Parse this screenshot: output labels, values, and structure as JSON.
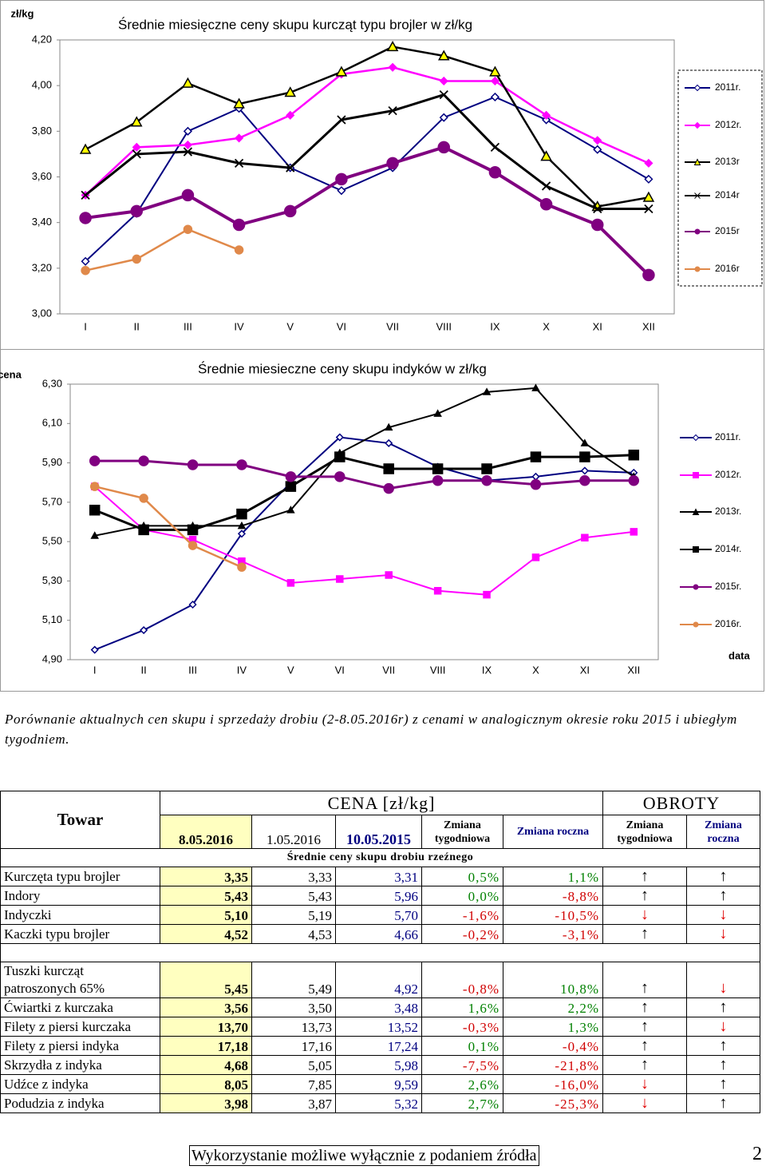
{
  "chart_data": [
    {
      "type": "line",
      "title": "Średnie miesięczne ceny skupu kurcząt typu brojler w zł/kg",
      "ylabel": "zł/kg",
      "categories": [
        "I",
        "II",
        "III",
        "IV",
        "V",
        "VI",
        "VII",
        "VIII",
        "IX",
        "X",
        "XI",
        "XII"
      ],
      "ylim": [
        3.0,
        4.2
      ],
      "yticks": [
        {
          "value": 3.0,
          "label": "3,00"
        },
        {
          "value": 3.2,
          "label": "3,20"
        },
        {
          "value": 3.4,
          "label": "3,40"
        },
        {
          "value": 3.6,
          "label": "3,60"
        },
        {
          "value": 3.8,
          "label": "3,80"
        },
        {
          "value": 4.0,
          "label": "4,00"
        },
        {
          "value": 4.2,
          "label": "4,20"
        }
      ],
      "legend": "right",
      "series": [
        {
          "name": "2011r.",
          "color": "#000080",
          "marker": "diamond",
          "marker_color": "#ffffff",
          "values": [
            3.23,
            3.44,
            3.8,
            3.9,
            3.64,
            3.54,
            3.64,
            3.86,
            3.95,
            3.85,
            3.72,
            3.59
          ]
        },
        {
          "name": "2012r.",
          "color": "#ff00ff",
          "marker": "diamond",
          "marker_color": "#ff00ff",
          "values": [
            3.52,
            3.73,
            3.74,
            3.77,
            3.87,
            4.05,
            4.08,
            4.02,
            4.02,
            3.87,
            3.76,
            3.66
          ]
        },
        {
          "name": "2013r",
          "color": "#000000",
          "marker": "triangle",
          "marker_color": "#ffff00",
          "values": [
            3.72,
            3.84,
            4.01,
            3.92,
            3.97,
            4.06,
            4.17,
            4.13,
            4.06,
            3.69,
            3.47,
            3.51
          ]
        },
        {
          "name": "2014r",
          "color": "#000000",
          "marker": "x",
          "marker_color": "#000000",
          "values": [
            3.52,
            3.7,
            3.71,
            3.66,
            3.64,
            3.85,
            3.89,
            3.96,
            3.73,
            3.56,
            3.46,
            3.46
          ]
        },
        {
          "name": "2015r",
          "color": "#800080",
          "marker": "circle",
          "marker_color": "#800080",
          "values": [
            3.42,
            3.45,
            3.52,
            3.39,
            3.45,
            3.59,
            3.66,
            3.73,
            3.62,
            3.48,
            3.39,
            3.17
          ]
        },
        {
          "name": "2016r",
          "color": "#e0894a",
          "marker": "circle",
          "marker_color": "#e0894a",
          "values": [
            3.19,
            3.24,
            3.37,
            3.28,
            null,
            null,
            null,
            null,
            null,
            null,
            null,
            null
          ]
        }
      ]
    },
    {
      "type": "line",
      "title": "Średnie miesieczne ceny skupu indyków w zł/kg",
      "ylabel": "cena",
      "xlabel": "data",
      "categories": [
        "I",
        "II",
        "III",
        "IV",
        "V",
        "VI",
        "VII",
        "VIII",
        "IX",
        "X",
        "XI",
        "XII"
      ],
      "ylim": [
        4.9,
        6.3
      ],
      "yticks": [
        {
          "value": 4.9,
          "label": "4,90"
        },
        {
          "value": 5.1,
          "label": "5,10"
        },
        {
          "value": 5.3,
          "label": "5,30"
        },
        {
          "value": 5.5,
          "label": "5,50"
        },
        {
          "value": 5.7,
          "label": "5,70"
        },
        {
          "value": 5.9,
          "label": "5,90"
        },
        {
          "value": 6.1,
          "label": "6,10"
        },
        {
          "value": 6.3,
          "label": "6,30"
        }
      ],
      "legend": "right",
      "series": [
        {
          "name": "2011r.",
          "color": "#000080",
          "marker": "diamond",
          "marker_color": "#ffffff",
          "values": [
            4.95,
            5.05,
            5.18,
            5.54,
            5.8,
            6.03,
            6.0,
            5.88,
            5.81,
            5.83,
            5.86,
            5.85
          ]
        },
        {
          "name": "2012r.",
          "color": "#ff00ff",
          "marker": "square",
          "marker_color": "#ff00ff",
          "values": [
            5.78,
            5.56,
            5.51,
            5.4,
            5.29,
            5.31,
            5.33,
            5.25,
            5.23,
            5.42,
            5.52,
            5.55
          ]
        },
        {
          "name": "2013r.",
          "color": "#000000",
          "marker": "triangle",
          "marker_color": "#000000",
          "values": [
            5.53,
            5.58,
            5.58,
            5.58,
            5.66,
            5.95,
            6.08,
            6.15,
            6.26,
            6.28,
            6.0,
            5.83
          ]
        },
        {
          "name": "2014r.",
          "color": "#000000",
          "marker": "square",
          "marker_color": "#000000",
          "values": [
            5.66,
            5.56,
            5.56,
            5.64,
            5.78,
            5.93,
            5.87,
            5.87,
            5.87,
            5.93,
            5.93,
            5.94
          ]
        },
        {
          "name": "2015r.",
          "color": "#800080",
          "marker": "circle",
          "marker_color": "#800080",
          "values": [
            5.91,
            5.91,
            5.89,
            5.89,
            5.83,
            5.83,
            5.77,
            5.81,
            5.81,
            5.79,
            5.81,
            5.81
          ]
        },
        {
          "name": "2016r.",
          "color": "#e0894a",
          "marker": "circle",
          "marker_color": "#e0894a",
          "values": [
            5.78,
            5.72,
            5.48,
            5.37,
            null,
            null,
            null,
            null,
            null,
            null,
            null,
            null
          ]
        }
      ]
    }
  ],
  "caption": "Porównanie aktualnych cen skupu i sprzedaży drobiu (2-8.05.2016r) z cenami w analogicznym okresie roku 2015 i ubiegłym tygodniem.",
  "table": {
    "group_headers": [
      "Towar",
      "CENA [zł/kg]",
      "OBROTY"
    ],
    "columns": [
      "8.05.2016",
      "1.05.2016",
      "10.05.2015",
      "Zmiana tygodniowa",
      "Zmiana roczna",
      "Zmiana tygodniowa",
      "Zmiana roczna"
    ],
    "section": "Średnie ceny skupu drobiu rzeźnego",
    "groups": [
      [
        [
          "Kurczęta typu brojler",
          "3,35",
          "3,33",
          "3,31",
          "0,5%",
          "1,1%",
          "↑",
          "↑"
        ],
        [
          "Indory",
          "5,43",
          "5,43",
          "5,96",
          "0,0%",
          "-8,8%",
          "↑",
          "↑"
        ],
        [
          "Indyczki",
          "5,10",
          "5,19",
          "5,70",
          "-1,6%",
          "-10,5%",
          "↓",
          "↓"
        ],
        [
          "Kaczki typu brojler",
          "4,52",
          "4,53",
          "4,66",
          "-0,2%",
          "-3,1%",
          "↑",
          "↓"
        ]
      ],
      [
        [
          "Tuszki kurcząt patroszonych 65%",
          "5,45",
          "5,49",
          "4,92",
          "-0,8%",
          "10,8%",
          "↑",
          "↓"
        ],
        [
          "Ćwiartki z kurczaka",
          "3,56",
          "3,50",
          "3,48",
          "1,6%",
          "2,2%",
          "↑",
          "↑"
        ],
        [
          "Filety z piersi kurczaka",
          "13,70",
          "13,73",
          "13,52",
          "-0,3%",
          "1,3%",
          "↑",
          "↓"
        ],
        [
          "Filety z piersi indyka",
          "17,18",
          "17,16",
          "17,24",
          "0,1%",
          "-0,4%",
          "↑",
          "↑"
        ],
        [
          "Skrzydła z indyka",
          "4,68",
          "5,05",
          "5,98",
          "-7,5%",
          "-21,8%",
          "↑",
          "↑"
        ],
        [
          "Udźce z indyka",
          "8,05",
          "7,85",
          "9,59",
          "2,6%",
          "-16,0%",
          "↓",
          "↑"
        ],
        [
          "Podudzia z indyka",
          "3,98",
          "3,87",
          "5,32",
          "2,7%",
          "-25,3%",
          "↓",
          "↑"
        ]
      ]
    ]
  },
  "footer": {
    "note": "Wykorzystanie możliwe wyłącznie z podaniem źródła",
    "page": 2
  }
}
